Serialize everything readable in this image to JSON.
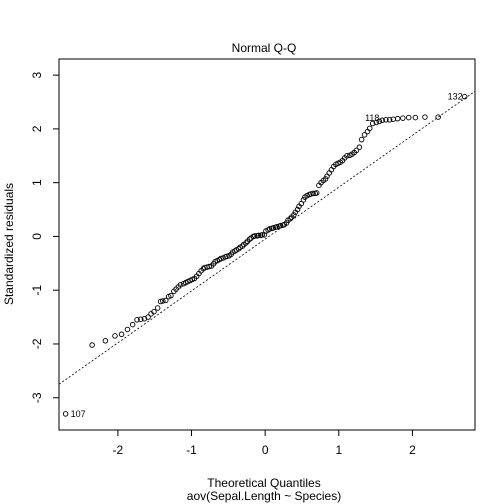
{
  "chart_data": {
    "type": "scatter",
    "title": "Normal Q-Q",
    "xlabel": "Theoretical Quantiles",
    "subtitle": "aov(Sepal.Length ~ Species)",
    "ylabel": "Standardized residuals",
    "xlim": [
      -2.8,
      2.85
    ],
    "ylim": [
      -3.6,
      3.3
    ],
    "xticks": [
      -2,
      -1,
      0,
      1,
      2
    ],
    "xtick_labels": [
      "-2",
      "-1",
      "0",
      "1",
      "2"
    ],
    "yticks": [
      -3,
      -2,
      -1,
      0,
      1,
      2,
      3
    ],
    "ytick_labels": [
      "-3",
      "-2",
      "-1",
      "0",
      "1",
      "2",
      "3"
    ],
    "grid": false,
    "reference_line": {
      "style": "dotted",
      "points": [
        [
          -2.8,
          -2.75
        ],
        [
          2.85,
          2.7
        ]
      ]
    },
    "annotations": [
      {
        "label": "132",
        "x": 2.75,
        "y": 2.6
      },
      {
        "label": "118",
        "x": 1.62,
        "y": 2.2
      },
      {
        "label": "107",
        "x": -2.71,
        "y": -3.3
      }
    ],
    "points": {
      "x": [
        -2.71,
        -2.35,
        -2.17,
        -2.04,
        -1.95,
        -1.87,
        -1.8,
        -1.74,
        -1.69,
        -1.64,
        -1.59,
        -1.55,
        -1.51,
        -1.46,
        -1.42,
        -1.39,
        -1.35,
        -1.31,
        -1.28,
        -1.24,
        -1.21,
        -1.18,
        -1.15,
        -1.11,
        -1.08,
        -1.05,
        -1.02,
        -0.99,
        -0.96,
        -0.93,
        -0.9,
        -0.87,
        -0.84,
        -0.82,
        -0.79,
        -0.76,
        -0.73,
        -0.7,
        -0.68,
        -0.65,
        -0.62,
        -0.6,
        -0.57,
        -0.54,
        -0.52,
        -0.49,
        -0.46,
        -0.44,
        -0.41,
        -0.39,
        -0.36,
        -0.34,
        -0.31,
        -0.29,
        -0.26,
        -0.24,
        -0.21,
        -0.19,
        -0.16,
        -0.14,
        -0.11,
        -0.09,
        -0.06,
        -0.04,
        -0.01,
        0.01,
        0.04,
        0.06,
        0.09,
        0.11,
        0.14,
        0.16,
        0.19,
        0.21,
        0.24,
        0.26,
        0.29,
        0.31,
        0.34,
        0.36,
        0.39,
        0.41,
        0.44,
        0.46,
        0.49,
        0.52,
        0.54,
        0.57,
        0.6,
        0.62,
        0.65,
        0.68,
        0.7,
        0.73,
        0.76,
        0.79,
        0.82,
        0.84,
        0.87,
        0.9,
        0.93,
        0.96,
        0.99,
        1.02,
        1.05,
        1.08,
        1.11,
        1.15,
        1.18,
        1.21,
        1.24,
        1.28,
        1.31,
        1.35,
        1.39,
        1.42,
        1.46,
        1.51,
        1.55,
        1.59,
        1.64,
        1.69,
        1.74,
        1.8,
        1.87,
        1.95,
        2.04,
        2.17,
        2.35,
        2.71
      ],
      "y": [
        -3.3,
        -2.02,
        -1.94,
        -1.85,
        -1.82,
        -1.73,
        -1.64,
        -1.55,
        -1.54,
        -1.53,
        -1.5,
        -1.44,
        -1.4,
        -1.33,
        -1.21,
        -1.2,
        -1.19,
        -1.12,
        -1.1,
        -1.02,
        -0.98,
        -0.94,
        -0.9,
        -0.88,
        -0.86,
        -0.84,
        -0.82,
        -0.8,
        -0.78,
        -0.74,
        -0.69,
        -0.64,
        -0.6,
        -0.58,
        -0.57,
        -0.56,
        -0.55,
        -0.51,
        -0.47,
        -0.45,
        -0.43,
        -0.41,
        -0.4,
        -0.38,
        -0.37,
        -0.36,
        -0.33,
        -0.29,
        -0.27,
        -0.25,
        -0.23,
        -0.2,
        -0.18,
        -0.15,
        -0.12,
        -0.09,
        -0.05,
        -0.03,
        0.0,
        0.01,
        0.01,
        0.02,
        0.02,
        0.03,
        0.03,
        0.1,
        0.12,
        0.14,
        0.15,
        0.16,
        0.17,
        0.18,
        0.19,
        0.2,
        0.21,
        0.22,
        0.25,
        0.3,
        0.33,
        0.36,
        0.4,
        0.45,
        0.5,
        0.56,
        0.61,
        0.68,
        0.73,
        0.76,
        0.78,
        0.79,
        0.8,
        0.8,
        0.81,
        0.95,
        1.0,
        1.04,
        1.07,
        1.12,
        1.18,
        1.24,
        1.3,
        1.34,
        1.36,
        1.38,
        1.41,
        1.46,
        1.5,
        1.51,
        1.53,
        1.56,
        1.6,
        1.66,
        1.8,
        1.89,
        1.95,
        2.01,
        2.1,
        2.12,
        2.14,
        2.16,
        2.17,
        2.17,
        2.18,
        2.19,
        2.2,
        2.21,
        2.21,
        2.22,
        2.22,
        2.6
      ]
    }
  }
}
